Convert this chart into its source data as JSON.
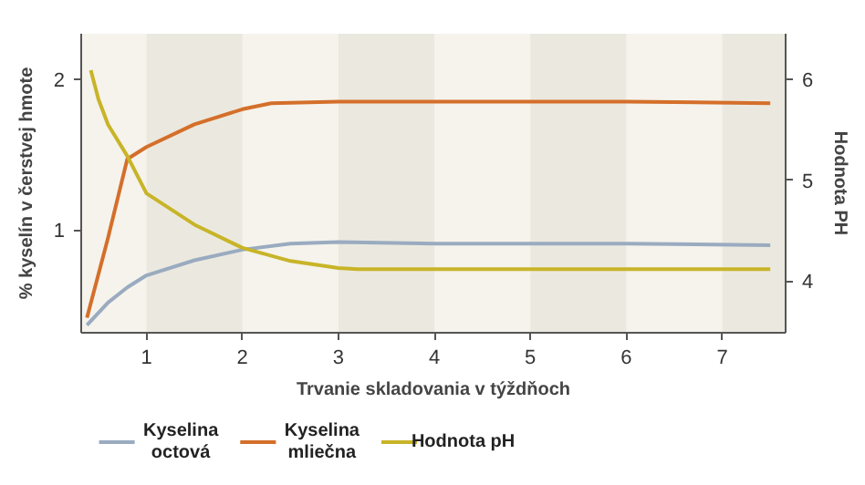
{
  "chart_data": {
    "type": "line",
    "xlabel": "Trvanie skladovania v týždňoch",
    "ylabel": "% kyselín v čerstvej hmote",
    "y2label": "Hodnota PH",
    "xlim": [
      0.32,
      7.66
    ],
    "xticks": [
      1,
      2,
      3,
      4,
      5,
      6,
      7
    ],
    "ylim": [
      0.32,
      2.3
    ],
    "yticks": [
      1,
      2
    ],
    "y2lim": [
      3.49,
      6.45
    ],
    "y2ticks": [
      4,
      5,
      6
    ],
    "grid": false,
    "legend": "bottom",
    "line_style": "solid",
    "marker": "none",
    "bands": [
      {
        "axis": "x",
        "from": 1,
        "to": 2,
        "color": "#ebe9df"
      },
      {
        "axis": "x",
        "from": 3,
        "to": 4,
        "color": "#ebe9df"
      },
      {
        "axis": "x",
        "from": 5,
        "to": 6,
        "color": "#ebe9df"
      },
      {
        "axis": "x",
        "from": 7,
        "to": 7.66,
        "color": "#ebe9df"
      }
    ],
    "series": [
      {
        "name": "Kyselina octová",
        "color": "#9aabc0",
        "x": [
          0.38,
          0.6,
          0.8,
          1,
          1.5,
          2,
          2.5,
          3,
          4,
          5,
          6,
          7.5
        ],
        "values": [
          0.37,
          0.52,
          0.62,
          0.7,
          0.8,
          0.87,
          0.91,
          0.92,
          0.91,
          0.91,
          0.91,
          0.9
        ]
      },
      {
        "name": "Kyselina mliečna",
        "color": "#d46f2a",
        "x": [
          0.38,
          0.6,
          0.8,
          1,
          1.5,
          2,
          2.3,
          3,
          4,
          5,
          6,
          7.5
        ],
        "values": [
          0.42,
          0.95,
          1.47,
          1.55,
          1.7,
          1.8,
          1.84,
          1.85,
          1.85,
          1.85,
          1.85,
          1.84
        ]
      },
      {
        "name": "Hodnota pH",
        "color": "#c8b428",
        "axis": "y2",
        "x": [
          0.42,
          0.5,
          0.6,
          0.8,
          1,
          1.5,
          2,
          2.5,
          3,
          3.2,
          4,
          5,
          6,
          7.5
        ],
        "values": [
          6.09,
          5.8,
          5.55,
          5.24,
          4.87,
          4.56,
          4.33,
          4.2,
          4.13,
          4.12,
          4.12,
          4.12,
          4.12,
          4.12
        ]
      }
    ]
  }
}
